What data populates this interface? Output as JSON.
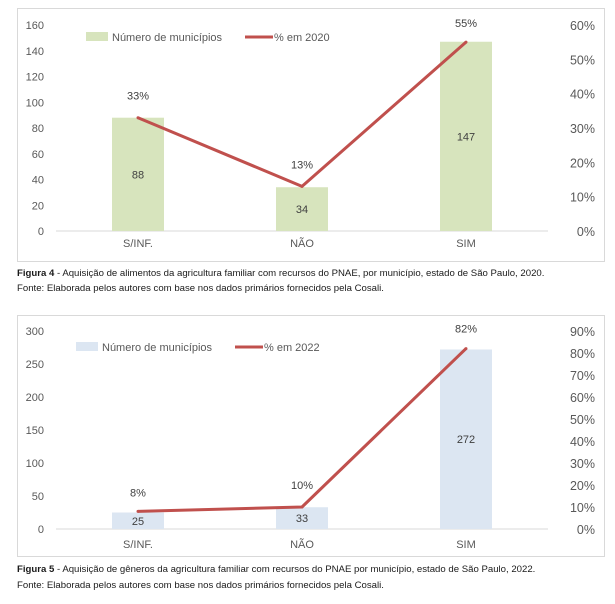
{
  "chart_data": [
    {
      "type": "bar",
      "categories": [
        "S/INF.",
        "NÃO",
        "SIM"
      ],
      "series": [
        {
          "name": "Número de municípios",
          "kind": "bar",
          "axis": "left",
          "values": [
            88,
            34,
            147
          ],
          "labels": [
            "88",
            "34",
            "147"
          ],
          "color": "#d7e4bd"
        },
        {
          "name": "% em 2020",
          "kind": "line",
          "axis": "right",
          "values": [
            33,
            13,
            55
          ],
          "labels": [
            "33%",
            "13%",
            "55%"
          ],
          "color": "#c0504d"
        }
      ],
      "y_left": {
        "ylim": [
          0,
          160
        ],
        "ticks": [
          "0",
          "20",
          "40",
          "60",
          "80",
          "100",
          "120",
          "140",
          "160"
        ]
      },
      "y_right": {
        "ylim": [
          0,
          60
        ],
        "ticks": [
          "0%",
          "10%",
          "20%",
          "30%",
          "40%",
          "50%",
          "60%"
        ]
      },
      "legend": "top-left",
      "grid": false
    },
    {
      "type": "bar",
      "categories": [
        "S/INF.",
        "NÃO",
        "SIM"
      ],
      "series": [
        {
          "name": "Número de municípios",
          "kind": "bar",
          "axis": "left",
          "values": [
            25,
            33,
            272
          ],
          "labels": [
            "25",
            "33",
            "272"
          ],
          "color": "#dce6f2"
        },
        {
          "name": "% em 2022",
          "kind": "line",
          "axis": "right",
          "values": [
            8,
            10,
            82
          ],
          "labels": [
            "8%",
            "10%",
            "82%"
          ],
          "color": "#c0504d"
        }
      ],
      "y_left": {
        "ylim": [
          0,
          300
        ],
        "ticks": [
          "0",
          "50",
          "100",
          "150",
          "200",
          "250",
          "300"
        ]
      },
      "y_right": {
        "ylim": [
          0,
          90
        ],
        "ticks": [
          "0%",
          "10%",
          "20%",
          "30%",
          "40%",
          "50%",
          "60%",
          "70%",
          "80%",
          "90%"
        ]
      },
      "legend": "top-left",
      "grid": false
    }
  ],
  "figures": [
    {
      "label": "Figura 4",
      "caption": " - Aquisição de alimentos da agricultura familiar com recursos do PNAE, por município, estado de São Paulo, 2020.",
      "source": "Fonte: Elaborada pelos autores com base nos dados primários fornecidos pela Cosali."
    },
    {
      "label": "Figura 5",
      "caption": " - Aquisição de gêneros da agricultura familiar com recursos do PNAE por município, estado de São Paulo, 2022.",
      "source": "Fonte: Elaborada pelos autores com base nos dados primários fornecidos pela Cosali."
    }
  ]
}
